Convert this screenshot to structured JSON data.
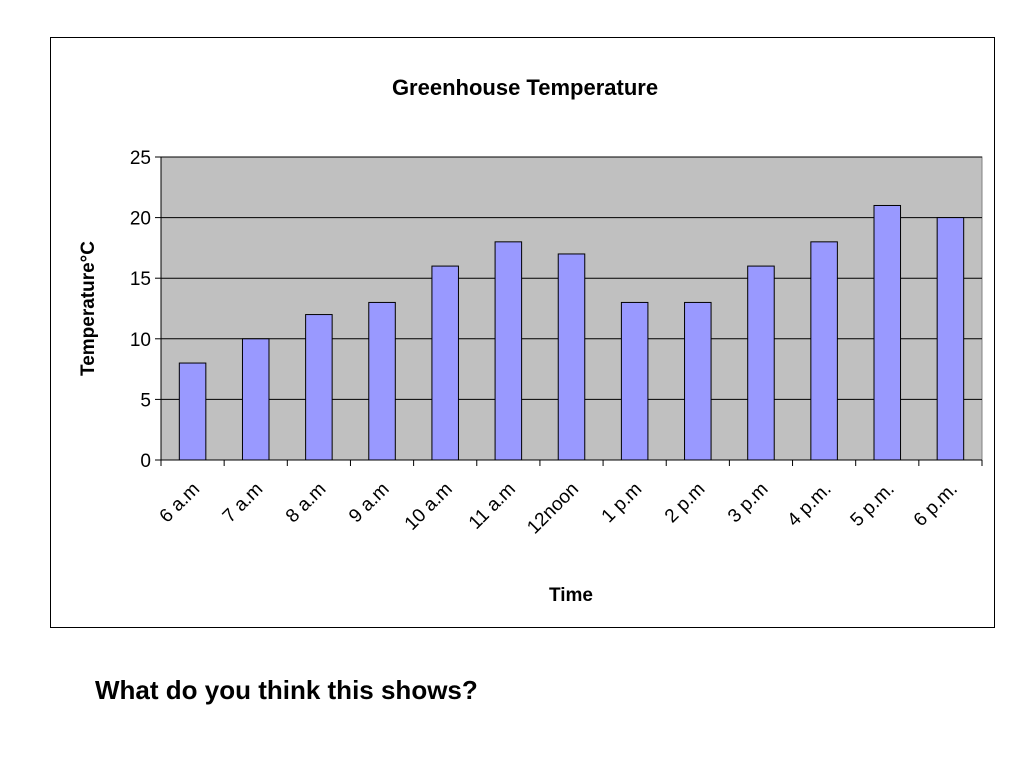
{
  "chart_data": {
    "type": "bar",
    "title": "Greenhouse Temperature",
    "xlabel": "Time",
    "ylabel": "Temperature°C",
    "categories": [
      "6 a.m",
      "7 a.m",
      "8 a.m",
      "9 a.m",
      "10 a.m",
      "11 a.m",
      "12noon",
      "1 p.m",
      "2 p.m",
      "3 p.m",
      "4 p.m.",
      "5 p.m.",
      "6 p.m."
    ],
    "values": [
      8,
      10,
      12,
      13,
      16,
      18,
      17,
      13,
      13,
      16,
      18,
      21,
      20
    ],
    "ylim": [
      0,
      25
    ],
    "yticks": [
      "0",
      "5",
      "10",
      "15",
      "20",
      "25"
    ],
    "grid": true,
    "legend": "none",
    "colors": {
      "bar_fill": "#9999ff",
      "plot_background": "#c0c0c0",
      "gridline": "#000000"
    }
  },
  "caption": "What do you think this shows?"
}
